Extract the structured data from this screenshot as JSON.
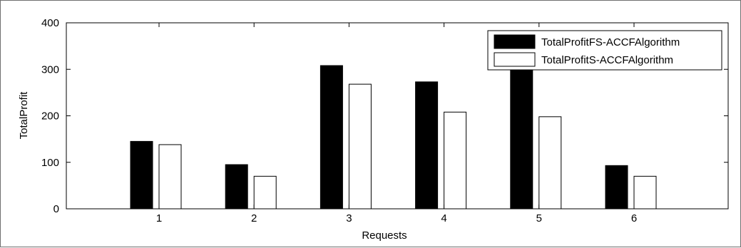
{
  "chart_data": {
    "type": "bar",
    "title": "",
    "xlabel": "Requests",
    "ylabel": "TotalProfit",
    "categories": [
      "1",
      "2",
      "3",
      "4",
      "5",
      "6"
    ],
    "series": [
      {
        "name": "TotalProfitFS-ACCFAlgorithm",
        "values": [
          145,
          95,
          308,
          273,
          305,
          93
        ],
        "color": "#000000"
      },
      {
        "name": "TotalProfitS-ACCFAlgorithm",
        "values": [
          138,
          70,
          268,
          208,
          198,
          70
        ],
        "color": "#ffffff"
      }
    ],
    "yticks": [
      "0",
      "100",
      "200",
      "300",
      "400"
    ],
    "ylim": [
      0,
      400
    ],
    "grid": false,
    "legend_position": "top-right"
  }
}
